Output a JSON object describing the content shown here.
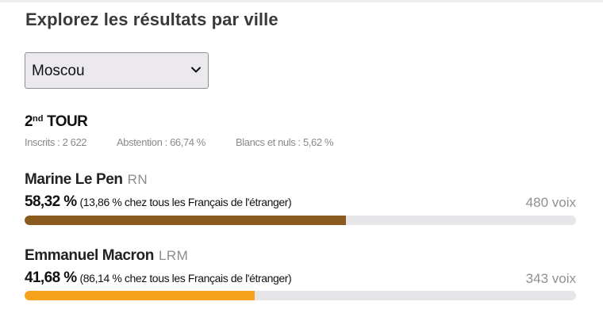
{
  "heading": "Explorez les résultats par ville",
  "city_select": {
    "value": "Moscou"
  },
  "round": {
    "number": "2",
    "ordinal_suffix": "nd",
    "label": "TOUR"
  },
  "stats": {
    "inscrits": "Inscrits : 2 622",
    "abstention": "Abstention : 66,74 %",
    "blancs_nuls": "Blancs et nuls : 5,62 %"
  },
  "candidates": [
    {
      "name": "Marine Le Pen",
      "party": "RN",
      "percent": "58,32 %",
      "detail": "(13,86 % chez tous les Français de l'étranger)",
      "votes": "480 voix",
      "share": 0.5832,
      "color": "#8b5a1f"
    },
    {
      "name": "Emmanuel Macron",
      "party": "LRM",
      "percent": "41,68 %",
      "detail": "(86,14 % chez tous les Français de l'étranger)",
      "votes": "343 voix",
      "share": 0.4168,
      "color": "#f7a21b"
    }
  ],
  "colors": {
    "bar_track": "#e6e6e9",
    "muted_text": "#8a8a8a"
  },
  "icons": {
    "select_caret": "chevron-down-icon"
  }
}
